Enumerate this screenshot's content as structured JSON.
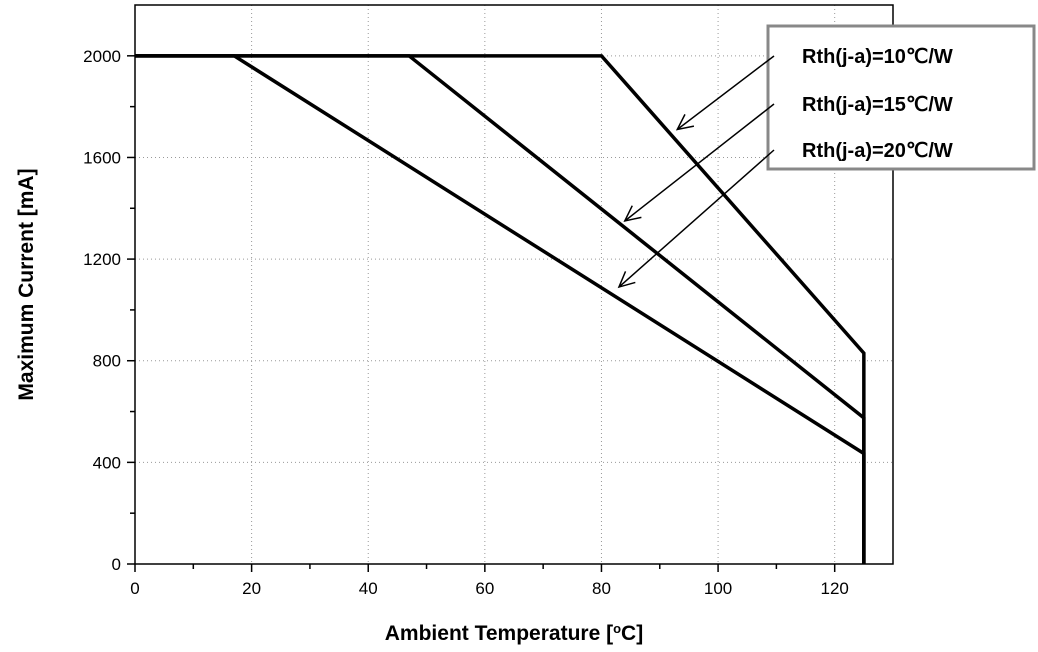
{
  "chart_data": {
    "type": "line",
    "title": "",
    "xlabel": "Ambient Temperature [",
    "xlabel_sup": "o",
    "xlabel_end": "C]",
    "ylabel": "Maximum Current [mA]",
    "xlim": [
      0,
      130
    ],
    "ylim": [
      0,
      2200
    ],
    "x_ticks": [
      0,
      20,
      40,
      60,
      80,
      100,
      120
    ],
    "y_ticks": [
      0,
      400,
      800,
      1200,
      1600,
      2000
    ],
    "grid": "dotted",
    "line_color": "#000000",
    "series": [
      {
        "name": "Rth(j-a)=10℃/W",
        "x": [
          0,
          80,
          125,
          125
        ],
        "y": [
          2000,
          2000,
          830,
          0
        ]
      },
      {
        "name": "Rth(j-a)=15℃/W",
        "x": [
          0,
          47,
          125,
          125
        ],
        "y": [
          2000,
          2000,
          575,
          0
        ]
      },
      {
        "name": "Rth(j-a)=20℃/W",
        "x": [
          0,
          17,
          125,
          125
        ],
        "y": [
          2000,
          2000,
          435,
          0
        ]
      }
    ],
    "annotations": [
      {
        "series": 0,
        "label_anchor": "first",
        "arrow_to": [
          93,
          1710
        ]
      },
      {
        "series": 1,
        "label_anchor": "second",
        "arrow_to": [
          84,
          1350
        ]
      },
      {
        "series": 2,
        "label_anchor": "third",
        "arrow_to": [
          83,
          1090
        ]
      }
    ],
    "legend_position": "top-right"
  }
}
